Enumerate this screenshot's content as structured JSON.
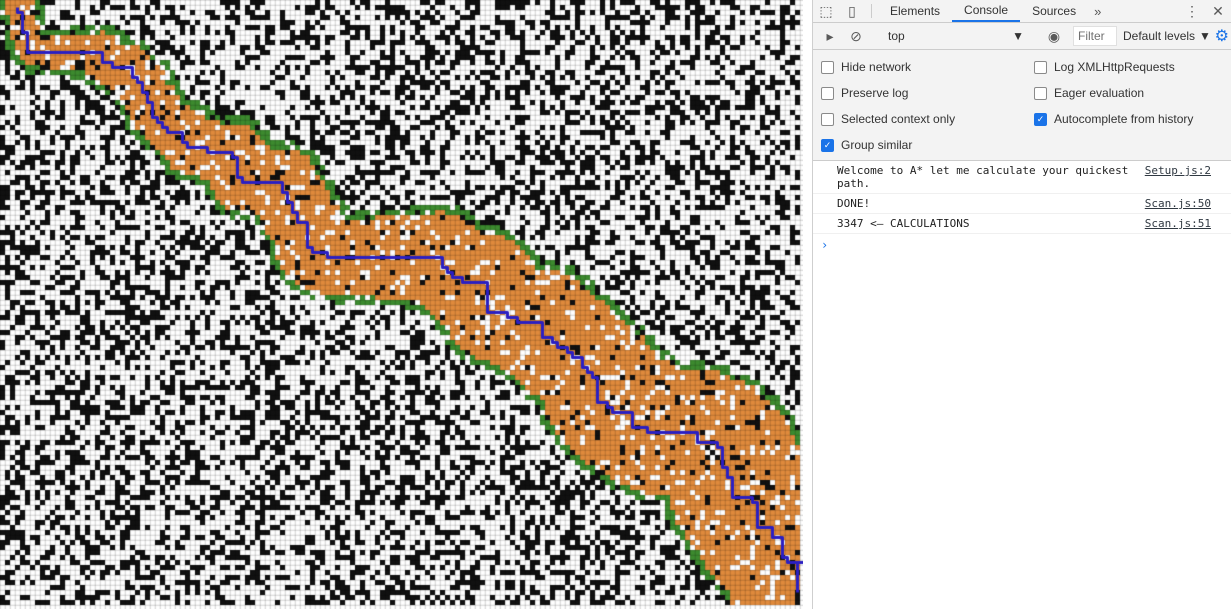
{
  "devtools": {
    "tabs": [
      {
        "label": "Elements",
        "active": false
      },
      {
        "label": "Console",
        "active": true
      },
      {
        "label": "Sources",
        "active": false
      }
    ],
    "more_tabs_glyph": "»",
    "menu_glyph": "⋮",
    "close_glyph": "✕"
  },
  "toolbar": {
    "context": "top",
    "filter_placeholder": "Filter",
    "levels_label": "Default levels"
  },
  "settings": [
    {
      "label": "Hide network",
      "checked": false
    },
    {
      "label": "Log XMLHttpRequests",
      "checked": false
    },
    {
      "label": "Preserve log",
      "checked": false
    },
    {
      "label": "Eager evaluation",
      "checked": false
    },
    {
      "label": "Selected context only",
      "checked": false
    },
    {
      "label": "Autocomplete from history",
      "checked": true
    },
    {
      "label": "Group similar",
      "checked": true
    }
  ],
  "console": {
    "messages": [
      {
        "text": "Welcome to A* let me calculate your quickest path.",
        "source": "Setup.js:2"
      },
      {
        "text": "DONE!",
        "source": "Scan.js:50"
      },
      {
        "text": "3347 <— CALCULATIONS",
        "source": "Scan.js:51"
      }
    ],
    "prompt_glyph": "›"
  },
  "grid": {
    "colors": {
      "wall": "#111111",
      "open": "#ffffff",
      "explored": "#e08a3c",
      "frontier": "#3c8a2e",
      "path": "#2b1fc2"
    }
  },
  "icons": [
    "inspect-icon",
    "device-toggle-icon",
    "sidebar-toggle-icon",
    "clear-console-icon",
    "eye-icon",
    "gear-icon"
  ]
}
